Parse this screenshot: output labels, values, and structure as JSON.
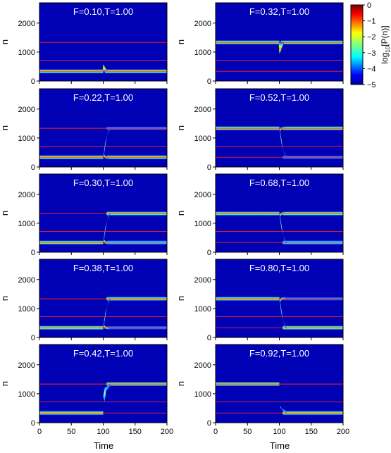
{
  "chart_data": {
    "type": "heatmap",
    "layout": "5x2 grid of panels",
    "x_label": "Time",
    "y_label": "n",
    "xlim": [
      0,
      200
    ],
    "ylim": [
      0,
      2700
    ],
    "x_ticks": [
      0,
      50,
      100,
      150,
      200
    ],
    "y_ticks": [
      0,
      1000,
      2000
    ],
    "x_tick_labels": [
      "0",
      "50",
      "100",
      "150",
      "200"
    ],
    "y_tick_labels": [
      "0",
      "1000",
      "2000"
    ],
    "reference_lines_n": [
      335,
      720,
      1335
    ],
    "reference_line_color": "#ff2020",
    "switch_time": 100,
    "colorbar": {
      "label_main": "log",
      "label_sub": "10",
      "label_rest": "[P(n)]",
      "range": [
        -5,
        0
      ],
      "ticks": [
        0,
        -1,
        -2,
        -3,
        -4,
        -5
      ],
      "tick_labels": [
        "0",
        "−1",
        "−2",
        "−3",
        "−4",
        "−5"
      ],
      "colormap": "jet"
    },
    "panels": [
      {
        "title": "F=0.10,T=1.00",
        "before": [
          335
        ],
        "after": [
          335
        ],
        "transient": "spike"
      },
      {
        "title": "F=0.32,T=1.00",
        "before": [
          1335
        ],
        "after": [
          1335
        ],
        "transient": "dip"
      },
      {
        "title": "F=0.22,T=1.00",
        "before": [
          335
        ],
        "after": [
          335,
          1335
        ],
        "transient": "split",
        "after_intensity": [
          1.0,
          0.35
        ]
      },
      {
        "title": "F=0.52,T=1.00",
        "before": [
          1335
        ],
        "after": [
          1335,
          335
        ],
        "transient": "split",
        "after_intensity": [
          1.0,
          0.35
        ]
      },
      {
        "title": "F=0.30,T=1.00",
        "before": [
          335
        ],
        "after": [
          1335,
          335
        ],
        "transient": "split",
        "after_intensity": [
          1.0,
          0.75
        ]
      },
      {
        "title": "F=0.68,T=1.00",
        "before": [
          1335
        ],
        "after": [
          1335,
          335
        ],
        "transient": "split",
        "after_intensity": [
          1.0,
          0.75
        ]
      },
      {
        "title": "F=0.38,T=1.00",
        "before": [
          335
        ],
        "after": [
          1335,
          335
        ],
        "transient": "split",
        "after_intensity": [
          1.0,
          0.4
        ]
      },
      {
        "title": "F=0.80,T=1.00",
        "before": [
          1335
        ],
        "after": [
          1335,
          335
        ],
        "transient": "split",
        "after_intensity": [
          0.45,
          1.0
        ]
      },
      {
        "title": "F=0.42,T=1.00",
        "before": [
          335
        ],
        "after": [
          1335
        ],
        "transient": "jump_up"
      },
      {
        "title": "F=0.92,T=1.00",
        "before": [
          1335
        ],
        "after": [
          335
        ],
        "transient": "jump_down"
      }
    ]
  }
}
